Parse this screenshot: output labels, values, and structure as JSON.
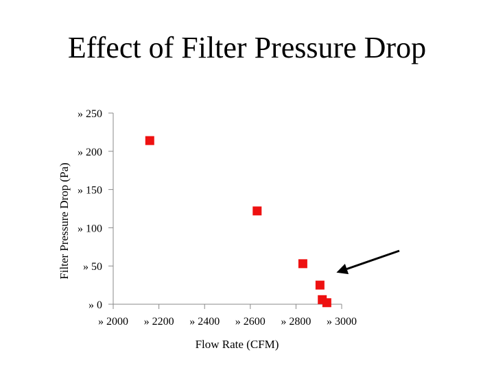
{
  "slide": {
    "title": "Effect of Filter Pressure Drop"
  },
  "chart_data": {
    "type": "scatter",
    "title": "",
    "xlabel": "Flow Rate (CFM)",
    "ylabel": "Filter Pressure Drop (Pa)",
    "xlim": [
      2000,
      3000
    ],
    "ylim": [
      0,
      250
    ],
    "x_ticks": [
      2000,
      2200,
      2400,
      2600,
      2800,
      3000
    ],
    "y_ticks": [
      0,
      50,
      100,
      150,
      200,
      250
    ],
    "x_tick_labels": [
      "» 2000",
      "» 2200",
      "» 2400",
      "» 2600",
      "» 2800",
      "» 3000"
    ],
    "y_tick_labels": [
      "» 0",
      "» 50",
      "» 100",
      "» 150",
      "» 200",
      "» 250"
    ],
    "grid": false,
    "marker": "square",
    "marker_color": "#ee1111",
    "series": [
      {
        "points": [
          {
            "x": 2160,
            "y": 214
          },
          {
            "x": 2630,
            "y": 122
          },
          {
            "x": 2830,
            "y": 53
          },
          {
            "x": 2905,
            "y": 25
          },
          {
            "x": 2915,
            "y": 6
          },
          {
            "x": 2935,
            "y": 2
          }
        ]
      }
    ],
    "annotation": {
      "type": "arrow",
      "target": {
        "x": 2935,
        "y": 2
      }
    }
  }
}
